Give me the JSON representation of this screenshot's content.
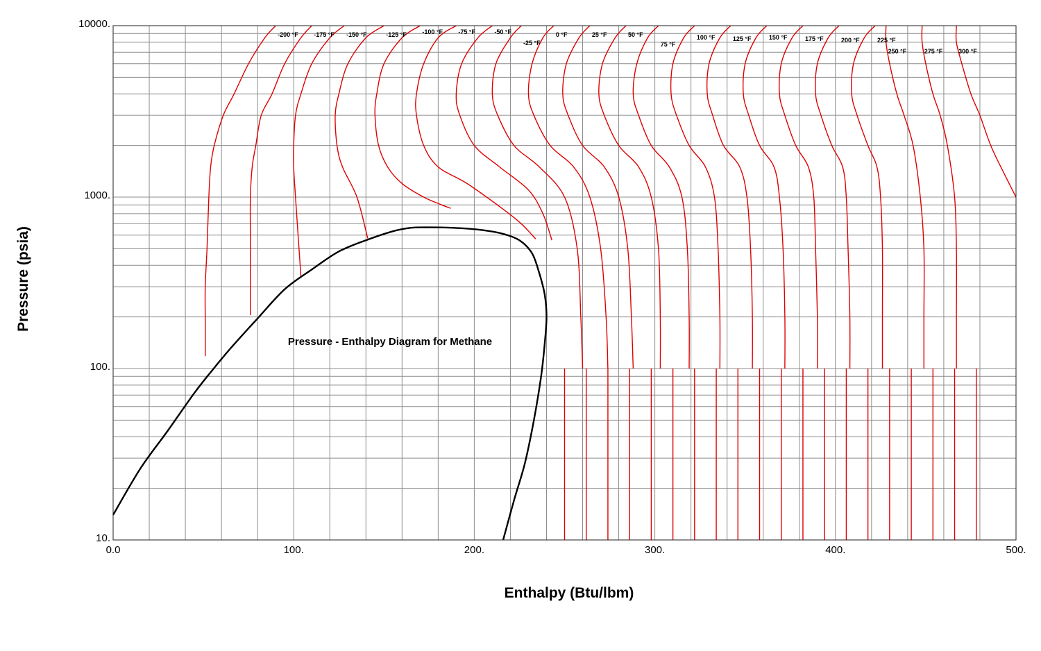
{
  "chart_data": {
    "type": "line",
    "title": "Pressure - Enthalpy Diagram for Methane",
    "xlabel": "Enthalpy (Btu/lbm)",
    "ylabel": "Pressure (psia)",
    "xlim": [
      0,
      500
    ],
    "ylim": [
      10,
      10000
    ],
    "yscale": "log",
    "grid": true,
    "x_ticks": [
      {
        "value": 0,
        "label": "0.0"
      },
      {
        "value": 100,
        "label": "100."
      },
      {
        "value": 200,
        "label": "200."
      },
      {
        "value": 300,
        "label": "300."
      },
      {
        "value": 400,
        "label": "400."
      },
      {
        "value": 500,
        "label": "500."
      }
    ],
    "y_ticks": [
      {
        "value": 10,
        "label": "10."
      },
      {
        "value": 100,
        "label": "100."
      },
      {
        "value": 1000,
        "label": "1000."
      },
      {
        "value": 10000,
        "label": "10000."
      }
    ],
    "colors": {
      "isotherm": "#e00000",
      "saturation_dome": "#000000",
      "grid": "#8c8c8c"
    },
    "saturation_dome": {
      "x": [
        0,
        15,
        30,
        45,
        55,
        65,
        80,
        95,
        110,
        125,
        140,
        155,
        165,
        175,
        185,
        195,
        205,
        215,
        225,
        232,
        236,
        239,
        240,
        239,
        237,
        233,
        228,
        222,
        216
      ],
      "y": [
        14,
        26,
        43,
        72,
        98,
        131,
        196,
        290,
        378,
        482,
        560,
        632,
        662,
        666,
        664,
        656,
        641,
        614,
        560,
        470,
        360,
        270,
        200,
        140,
        90,
        50,
        28,
        17,
        10
      ]
    },
    "isotherms": [
      {
        "label": "-200 °F",
        "x": [
          90,
          84,
          75,
          67,
          61,
          56,
          54,
          53,
          52,
          51,
          51,
          51,
          51
        ],
        "y": [
          10000,
          8500,
          6000,
          4000,
          3000,
          2000,
          1500,
          1000,
          500,
          300,
          200,
          150,
          118
        ]
      },
      {
        "label": "-175 °F",
        "x": [
          110,
          104,
          95,
          88,
          82,
          79,
          77,
          76,
          76,
          76
        ],
        "y": [
          10000,
          8500,
          6000,
          4000,
          3000,
          2000,
          1500,
          1000,
          500,
          205
        ]
      },
      {
        "label": "-150 °F",
        "x": [
          128,
          120,
          110,
          104,
          101,
          100,
          100,
          101,
          104
        ],
        "y": [
          10000,
          8500,
          6000,
          4000,
          3000,
          2000,
          1500,
          1000,
          345
        ]
      },
      {
        "label": "-125 °F",
        "x": [
          150,
          140,
          130,
          125,
          123,
          124,
          127,
          135,
          141
        ],
        "y": [
          10000,
          8500,
          6000,
          4000,
          3000,
          2000,
          1500,
          1000,
          575
        ]
      },
      {
        "label": "-100 °F",
        "x": [
          170,
          160,
          150,
          146,
          145,
          147,
          152,
          160,
          172,
          182,
          187
        ],
        "y": [
          10000,
          8500,
          6000,
          4000,
          3000,
          2000,
          1500,
          1200,
          1000,
          900,
          860
        ]
      },
      {
        "label": "-75 °F",
        "x": [
          190,
          180,
          172,
          168,
          168,
          172,
          180,
          196,
          216,
          226,
          234
        ],
        "y": [
          10000,
          8500,
          6000,
          4000,
          3000,
          2000,
          1500,
          1200,
          850,
          700,
          570
        ]
      },
      {
        "label": "-50 °F",
        "x": [
          210,
          202,
          193,
          190,
          192,
          200,
          214,
          230,
          238,
          243
        ],
        "y": [
          10000,
          8500,
          6000,
          4000,
          3000,
          2000,
          1500,
          1100,
          800,
          560
        ]
      },
      {
        "label": "-25 °F",
        "x": [
          226,
          220,
          212,
          210,
          213,
          222,
          236,
          250,
          257,
          259,
          260
        ],
        "y": [
          10000,
          8500,
          6000,
          4000,
          3000,
          2000,
          1500,
          1000,
          500,
          200,
          100
        ]
      },
      {
        "label": "0 °F",
        "x": [
          244,
          238,
          232,
          230,
          233,
          242,
          255,
          264,
          270,
          273,
          274
        ],
        "y": [
          10000,
          8500,
          6000,
          4000,
          3000,
          2000,
          1500,
          1000,
          500,
          200,
          100
        ]
      },
      {
        "label": "25 °F",
        "x": [
          264,
          258,
          251,
          249,
          252,
          260,
          272,
          280,
          285,
          287,
          288
        ],
        "y": [
          10000,
          8500,
          6000,
          4000,
          3000,
          2000,
          1500,
          1000,
          500,
          200,
          100
        ]
      },
      {
        "label": "50 °F",
        "x": [
          284,
          278,
          271,
          269,
          272,
          280,
          291,
          298,
          302,
          303,
          303
        ],
        "y": [
          10000,
          8500,
          6000,
          4000,
          3000,
          2000,
          1500,
          1000,
          500,
          200,
          100
        ]
      },
      {
        "label": "75 °F",
        "x": [
          302,
          296,
          290,
          288,
          291,
          298,
          308,
          315,
          318,
          319,
          319
        ],
        "y": [
          10000,
          8500,
          6000,
          4000,
          3000,
          2000,
          1500,
          1000,
          500,
          200,
          100
        ]
      },
      {
        "label": "100 °F",
        "x": [
          322,
          316,
          310,
          309,
          312,
          319,
          328,
          333,
          335,
          336,
          336
        ],
        "y": [
          10000,
          8500,
          6000,
          4000,
          3000,
          2000,
          1500,
          1000,
          500,
          200,
          100
        ]
      },
      {
        "label": "125 °F",
        "x": [
          342,
          336,
          330,
          329,
          332,
          338,
          347,
          351,
          353,
          354,
          354
        ],
        "y": [
          10000,
          8500,
          6000,
          4000,
          3000,
          2000,
          1500,
          1000,
          500,
          200,
          100
        ]
      },
      {
        "label": "150 °F",
        "x": [
          362,
          356,
          350,
          349,
          352,
          358,
          366,
          369,
          371,
          372,
          372
        ],
        "y": [
          10000,
          8500,
          6000,
          4000,
          3000,
          2000,
          1500,
          1000,
          500,
          200,
          100
        ]
      },
      {
        "label": "175 °F",
        "x": [
          382,
          376,
          370,
          369,
          372,
          378,
          385,
          388,
          389,
          390,
          390
        ],
        "y": [
          10000,
          8500,
          6000,
          4000,
          3000,
          2000,
          1500,
          1000,
          500,
          200,
          100
        ]
      },
      {
        "label": "200 °F",
        "x": [
          402,
          396,
          390,
          389,
          392,
          398,
          404,
          406,
          407,
          408,
          408
        ],
        "y": [
          10000,
          8500,
          6000,
          4000,
          3000,
          2000,
          1500,
          1000,
          500,
          200,
          100
        ]
      },
      {
        "label": "225 °F",
        "x": [
          422,
          416,
          410,
          409,
          412,
          418,
          423,
          425,
          426,
          426,
          426
        ],
        "y": [
          10000,
          8500,
          6000,
          4000,
          3000,
          2000,
          1500,
          1000,
          500,
          200,
          100
        ]
      },
      {
        "label": "250 °F",
        "x": [
          428,
          428,
          430,
          434,
          438,
          443,
          447,
          449,
          449,
          449
        ],
        "y": [
          10000,
          8000,
          6000,
          4000,
          3000,
          2000,
          1000,
          500,
          200,
          100
        ]
      },
      {
        "label": "275 °F",
        "x": [
          448,
          448,
          450,
          454,
          458,
          462,
          466,
          467,
          467,
          467
        ],
        "y": [
          10000,
          8000,
          6000,
          4000,
          3000,
          2000,
          1000,
          500,
          200,
          100
        ]
      },
      {
        "label": "300 °F",
        "x": [
          467,
          467,
          470,
          475,
          480,
          486,
          493,
          500
        ],
        "y": [
          10000,
          8000,
          6000,
          4000,
          3000,
          2000,
          1400,
          1000
        ]
      }
    ],
    "vertical_tails": {
      "x_start": [
        238,
        250,
        262,
        274,
        286,
        298,
        310,
        322,
        334,
        346,
        358,
        370,
        382,
        394,
        406,
        418,
        430,
        442,
        454,
        466
      ],
      "x_end": [
        250,
        262,
        274,
        286,
        298,
        310,
        322,
        334,
        346,
        358,
        370,
        382,
        394,
        406,
        418,
        430,
        442,
        454,
        466,
        478
      ]
    }
  }
}
